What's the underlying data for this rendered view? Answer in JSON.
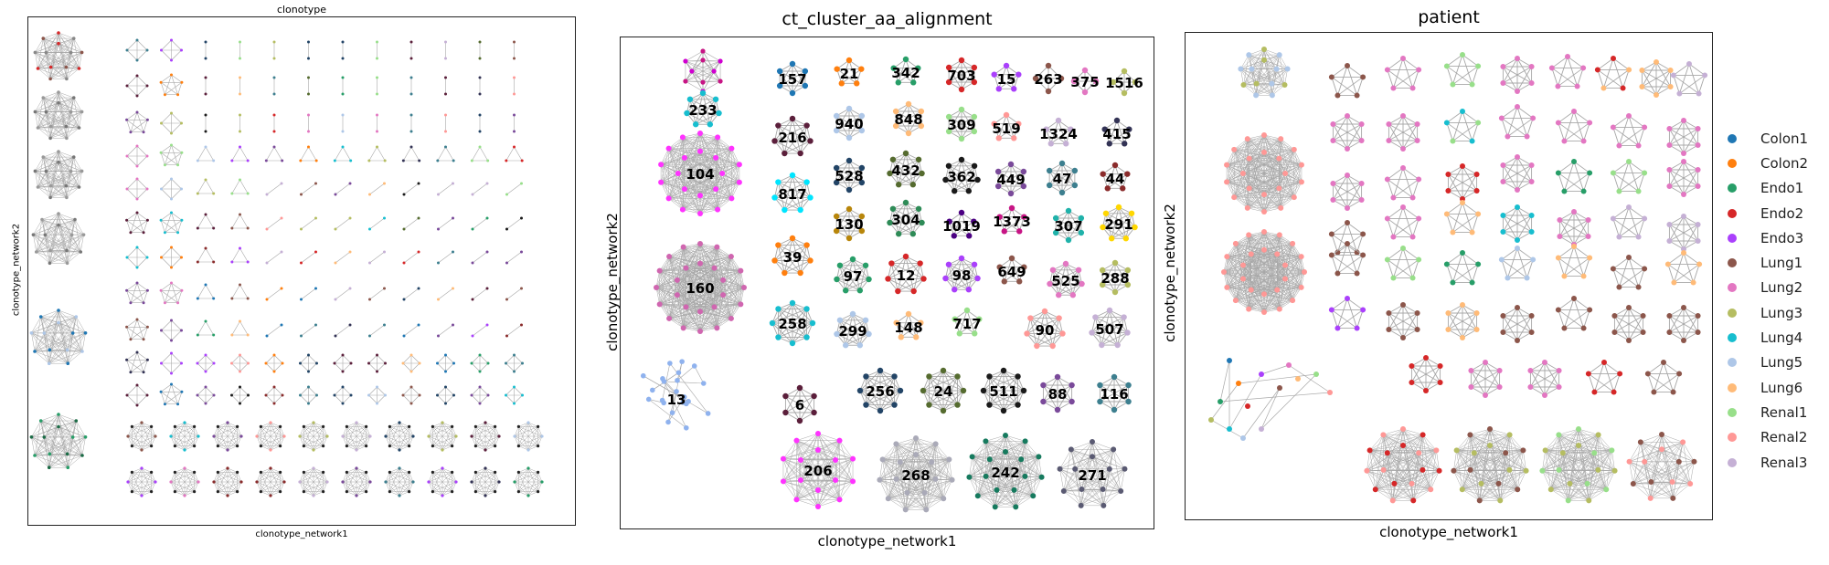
{
  "chart_data": [
    {
      "type": "scatter",
      "subtype": "network-graph",
      "title": "clonotype",
      "xlabel": "clonotype_network1",
      "ylabel": "clonotype_network2",
      "grid": false,
      "cluster_labels": []
    },
    {
      "type": "scatter",
      "subtype": "network-graph",
      "title": "ct_cluster_aa_alignment",
      "xlabel": "clonotype_network1",
      "ylabel": "clonotype_network2",
      "grid": false,
      "cluster_labels": [
        "157",
        "21",
        "342",
        "703",
        "15",
        "263",
        "375",
        "1516",
        "233",
        "940",
        "848",
        "309",
        "519",
        "1324",
        "415",
        "216",
        "528",
        "432",
        "362",
        "449",
        "47",
        "44",
        "104",
        "817",
        "130",
        "304",
        "1019",
        "1373",
        "307",
        "291",
        "160",
        "39",
        "97",
        "12",
        "98",
        "649",
        "525",
        "288",
        "258",
        "299",
        "148",
        "717",
        "90",
        "507",
        "13",
        "6",
        "256",
        "24",
        "511",
        "88",
        "116",
        "206",
        "268",
        "242",
        "271"
      ]
    },
    {
      "type": "scatter",
      "subtype": "network-graph",
      "title": "patient",
      "xlabel": "clonotype_network1",
      "ylabel": "clonotype_network2",
      "grid": false,
      "legend_position": "right",
      "legend": [
        {
          "name": "Colon1",
          "color": "#1f77b4"
        },
        {
          "name": "Colon2",
          "color": "#ff7f0e"
        },
        {
          "name": "Endo1",
          "color": "#279e68"
        },
        {
          "name": "Endo2",
          "color": "#d62728"
        },
        {
          "name": "Endo3",
          "color": "#aa40fc"
        },
        {
          "name": "Lung1",
          "color": "#8c564b"
        },
        {
          "name": "Lung2",
          "color": "#e377c2"
        },
        {
          "name": "Lung3",
          "color": "#b5bd61"
        },
        {
          "name": "Lung4",
          "color": "#17becf"
        },
        {
          "name": "Lung5",
          "color": "#aec7e8"
        },
        {
          "name": "Lung6",
          "color": "#ffbb78"
        },
        {
          "name": "Renal1",
          "color": "#98df8a"
        },
        {
          "name": "Renal2",
          "color": "#ff9896"
        },
        {
          "name": "Renal3",
          "color": "#c5b0d5"
        }
      ]
    }
  ]
}
